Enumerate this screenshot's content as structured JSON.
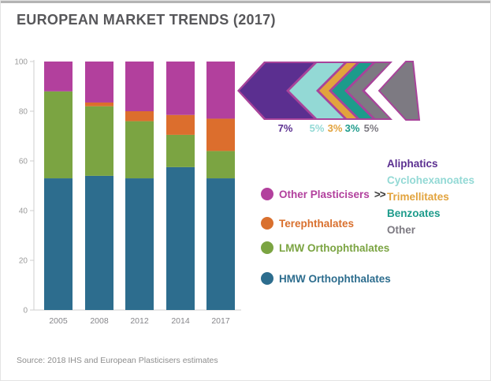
{
  "title": "EUROPEAN MARKET TRENDS (2017)",
  "source": "Source: 2018 IHS and European Plasticisers estimates",
  "chart_data": {
    "type": "bar",
    "subtype": "stacked-vertical",
    "title": "EUROPEAN MARKET TRENDS (2017)",
    "categories": [
      "2005",
      "2008",
      "2012",
      "2014",
      "2017"
    ],
    "series": [
      {
        "name": "HMW Orthophthalates",
        "color": "#2d6d8e",
        "values": [
          53,
          54,
          53,
          57.5,
          53
        ]
      },
      {
        "name": "LMW Orthophthalates",
        "color": "#7ba442",
        "values": [
          35,
          28,
          23,
          13,
          11
        ]
      },
      {
        "name": "Terephthalates",
        "color": "#dc6e2d",
        "values": [
          0,
          1.5,
          4,
          8,
          13
        ]
      },
      {
        "name": "Other Plasticisers",
        "color": "#b2409d",
        "values": [
          12,
          16.5,
          20,
          21.5,
          23
        ]
      }
    ],
    "xlabel": "",
    "ylabel": "",
    "ylim": [
      0,
      100
    ],
    "yticks": [
      0,
      20,
      40,
      60,
      80,
      100
    ],
    "grid": false,
    "legend_position": "right"
  },
  "legend": {
    "more_symbol": ">>",
    "items": [
      {
        "label": "Other Plasticisers",
        "color": "#b2409d",
        "has_more": true
      },
      {
        "label": "Terephthalates",
        "color": "#d9702e",
        "has_more": false
      },
      {
        "label": "LMW Orthophthalates",
        "color": "#7ba442",
        "has_more": false
      },
      {
        "label": "HMW Orthophthalates",
        "color": "#2d6d8e",
        "has_more": false
      }
    ]
  },
  "breakdown": {
    "description": "Composition of Other Plasticisers in 2017, shown as nested chevron arrow",
    "items": [
      {
        "label": "Aliphatics",
        "pct": "7%",
        "color": "#5b2f90"
      },
      {
        "label": "Cyclohexanoates",
        "pct": "5%",
        "color": "#93d9d5"
      },
      {
        "label": "Trimellitates",
        "pct": "3%",
        "color": "#e2a33d"
      },
      {
        "label": "Benzoates",
        "pct": "3%",
        "color": "#1d9b8b"
      },
      {
        "label": "Other",
        "pct": "5%",
        "color": "#7d7a82"
      }
    ],
    "arrow_outline_color": "#a8439a"
  }
}
